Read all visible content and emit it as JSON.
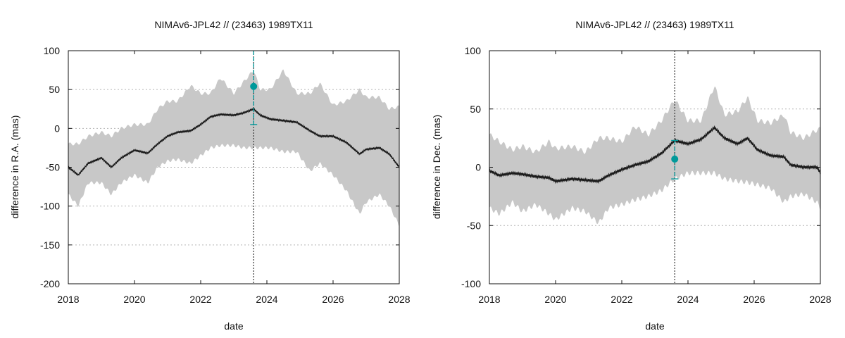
{
  "chart_data": [
    {
      "type": "line",
      "title": "NIMAv6-JPL42 // (23463) 1989TX11",
      "xlabel": "date",
      "ylabel": "difference in R.A. (mas)",
      "xlim": [
        2018,
        2028
      ],
      "ylim": [
        -200,
        100
      ],
      "xticks": [
        2018,
        2020,
        2022,
        2024,
        2026,
        2028
      ],
      "yticks": [
        -200,
        -150,
        -100,
        -50,
        0,
        50,
        100
      ],
      "grid": "horizontal dotted",
      "series": [
        {
          "name": "difference",
          "x": [
            2018.0,
            2018.3,
            2018.6,
            2019.0,
            2019.3,
            2019.6,
            2020.0,
            2020.4,
            2020.7,
            2021.0,
            2021.3,
            2021.7,
            2022.0,
            2022.3,
            2022.6,
            2023.0,
            2023.3,
            2023.6,
            2023.8,
            2024.1,
            2024.5,
            2024.9,
            2025.3,
            2025.6,
            2026.0,
            2026.4,
            2026.8,
            2027.0,
            2027.4,
            2027.7,
            2028.0
          ],
          "y": [
            -50,
            -60,
            -45,
            -38,
            -50,
            -38,
            -28,
            -32,
            -20,
            -10,
            -5,
            -3,
            5,
            15,
            18,
            17,
            20,
            25,
            17,
            12,
            10,
            8,
            -3,
            -10,
            -10,
            -18,
            -33,
            -27,
            -25,
            -33,
            -50
          ]
        }
      ],
      "band": {
        "x": [
          2018.0,
          2018.3,
          2018.6,
          2019.0,
          2019.3,
          2019.6,
          2020.0,
          2020.4,
          2020.7,
          2021.0,
          2021.3,
          2021.7,
          2022.0,
          2022.3,
          2022.6,
          2023.0,
          2023.3,
          2023.6,
          2023.8,
          2024.1,
          2024.5,
          2024.9,
          2025.3,
          2025.6,
          2026.0,
          2026.4,
          2026.8,
          2027.0,
          2027.4,
          2027.7,
          2028.0
        ],
        "upper": [
          -20,
          -20,
          -10,
          -5,
          -10,
          0,
          5,
          5,
          25,
          35,
          35,
          55,
          45,
          45,
          65,
          45,
          60,
          75,
          50,
          50,
          75,
          45,
          45,
          58,
          30,
          35,
          50,
          40,
          40,
          25,
          28
        ],
        "lower": [
          -85,
          -100,
          -70,
          -70,
          -85,
          -70,
          -60,
          -70,
          -50,
          -42,
          -40,
          -45,
          -35,
          -25,
          -22,
          -22,
          -25,
          -25,
          -25,
          -25,
          -30,
          -30,
          -55,
          -45,
          -60,
          -80,
          -110,
          -95,
          -85,
          -100,
          -125
        ]
      },
      "observation": {
        "x": 2023.6,
        "y": 54,
        "err_low": 5,
        "err_high": 100,
        "color": "#00999a"
      },
      "vline_x": 2023.6
    },
    {
      "type": "line",
      "title": "NIMAv6-JPL42 // (23463) 1989TX11",
      "xlabel": "date",
      "ylabel": "difference in Dec. (mas)",
      "xlim": [
        2018,
        2028
      ],
      "ylim": [
        -100,
        100
      ],
      "xticks": [
        2018,
        2020,
        2022,
        2024,
        2026,
        2028
      ],
      "yticks": [
        -100,
        -50,
        0,
        50,
        100
      ],
      "grid": "horizontal dotted",
      "series": [
        {
          "name": "difference",
          "x": [
            2018.0,
            2018.3,
            2018.7,
            2019.0,
            2019.4,
            2019.8,
            2020.0,
            2020.5,
            2020.9,
            2021.3,
            2021.6,
            2022.0,
            2022.4,
            2022.8,
            2023.2,
            2023.6,
            2024.0,
            2024.4,
            2024.8,
            2025.1,
            2025.5,
            2025.8,
            2026.1,
            2026.5,
            2026.9,
            2027.1,
            2027.5,
            2027.9,
            2028.0
          ],
          "y": [
            -3,
            -7,
            -5,
            -6,
            -8,
            -9,
            -12,
            -10,
            -11,
            -12,
            -7,
            -2,
            2,
            5,
            12,
            23,
            20,
            24,
            34,
            25,
            20,
            25,
            15,
            10,
            9,
            2,
            0,
            0,
            -5
          ]
        }
      ],
      "band": {
        "x": [
          2018.0,
          2018.3,
          2018.7,
          2019.0,
          2019.4,
          2019.8,
          2020.0,
          2020.5,
          2020.9,
          2021.3,
          2021.6,
          2022.0,
          2022.4,
          2022.8,
          2023.2,
          2023.6,
          2024.0,
          2024.4,
          2024.8,
          2025.1,
          2025.5,
          2025.8,
          2026.1,
          2026.5,
          2026.9,
          2027.1,
          2027.5,
          2027.9,
          2028.0
        ],
        "upper": [
          28,
          22,
          15,
          18,
          13,
          22,
          16,
          18,
          13,
          25,
          25,
          22,
          35,
          28,
          40,
          58,
          40,
          40,
          70,
          45,
          48,
          60,
          40,
          38,
          45,
          30,
          25,
          32,
          33
        ],
        "lower": [
          -35,
          -40,
          -30,
          -38,
          -32,
          -40,
          -45,
          -35,
          -38,
          -48,
          -35,
          -32,
          -28,
          -25,
          -20,
          -10,
          -5,
          -5,
          -5,
          -10,
          -12,
          -13,
          -15,
          -18,
          -30,
          -25,
          -23,
          -30,
          -35
        ]
      },
      "observation": {
        "x": 2023.6,
        "y": 7,
        "err_low": -10,
        "err_high": 23,
        "color": "#00999a"
      },
      "vline_x": 2023.6
    }
  ]
}
